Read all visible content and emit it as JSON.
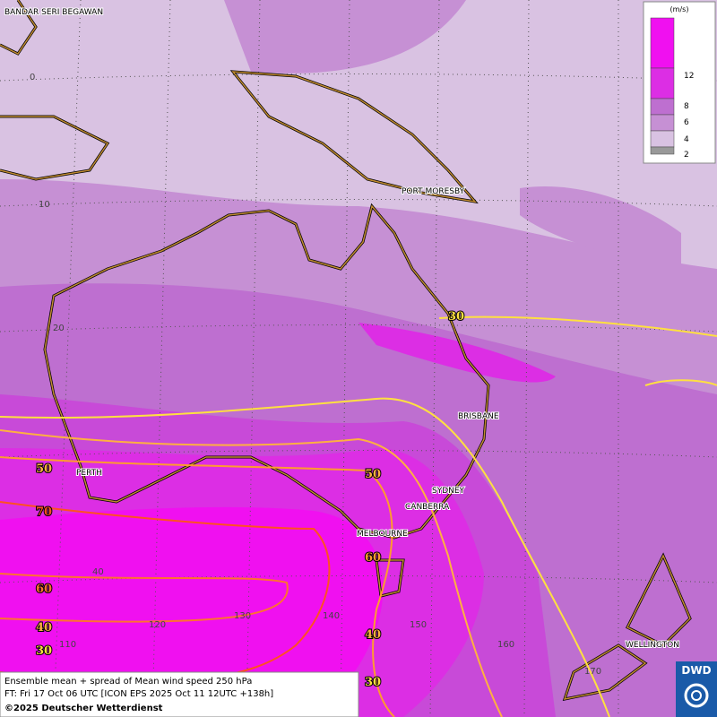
{
  "legend": {
    "unit": "(m/s)",
    "labels": [
      "12",
      "8",
      "6",
      "4",
      "2"
    ]
  },
  "cities": [
    "BANDAR SERI BEGAWAN",
    "PORT MORESBY",
    "BRISBANE",
    "PERTH",
    "SYDNEY",
    "CANBERRA",
    "MELBOURNE",
    "WELLINGTON"
  ],
  "latitude_labels": [
    "0",
    "10",
    "20",
    "40"
  ],
  "longitude_labels": [
    "110",
    "120",
    "130",
    "140",
    "150",
    "160",
    "170"
  ],
  "contour_labels": [
    "30",
    "50",
    "70",
    "50",
    "60",
    "60",
    "40",
    "40",
    "30",
    "30"
  ],
  "caption": {
    "line1": "Ensemble mean + spread of Mean wind speed 250 hPa",
    "line2": "FT: Fri 17 Oct 06 UTC [ICON EPS 2025 Oct 11 12UTC +138h]",
    "line3": "©2025 Deutscher Wetterdienst"
  },
  "logo": "DWD"
}
